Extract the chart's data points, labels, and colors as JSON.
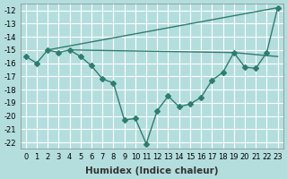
{
  "xlabel": "Humidex (Indice chaleur)",
  "bg_color": "#b4dede",
  "grid_color": "#ffffff",
  "line_color": "#2e7d6e",
  "xlim": [
    -0.5,
    23.5
  ],
  "ylim": [
    -22.5,
    -11.5
  ],
  "xticks": [
    0,
    1,
    2,
    3,
    4,
    5,
    6,
    7,
    8,
    9,
    10,
    11,
    12,
    13,
    14,
    15,
    16,
    17,
    18,
    19,
    20,
    21,
    22,
    23
  ],
  "yticks": [
    -22,
    -21,
    -20,
    -19,
    -18,
    -17,
    -16,
    -15,
    -14,
    -13,
    -12
  ],
  "line1_x": [
    0,
    1,
    2,
    3,
    4,
    5,
    6,
    7,
    8,
    9,
    10,
    11,
    12,
    13,
    14,
    15,
    16,
    17,
    18,
    19,
    20,
    21,
    22,
    23
  ],
  "line1_y": [
    -15.5,
    -16.0,
    -15.0,
    -15.2,
    -15.0,
    -15.5,
    -16.2,
    -17.2,
    -17.5,
    -20.3,
    -20.2,
    -22.1,
    -19.6,
    -18.5,
    -19.3,
    -19.1,
    -18.6,
    -17.3,
    -16.7,
    -15.2,
    -16.3,
    -16.4,
    -15.2,
    -11.8
  ],
  "line2_x": [
    2,
    23
  ],
  "line2_y": [
    -15.0,
    -11.8
  ],
  "line3_x": [
    4,
    19,
    23
  ],
  "line3_y": [
    -15.0,
    -15.2,
    -15.5
  ],
  "marker_size": 3,
  "linewidth": 1.0,
  "tick_fontsize": 6,
  "label_fontsize": 7.5
}
